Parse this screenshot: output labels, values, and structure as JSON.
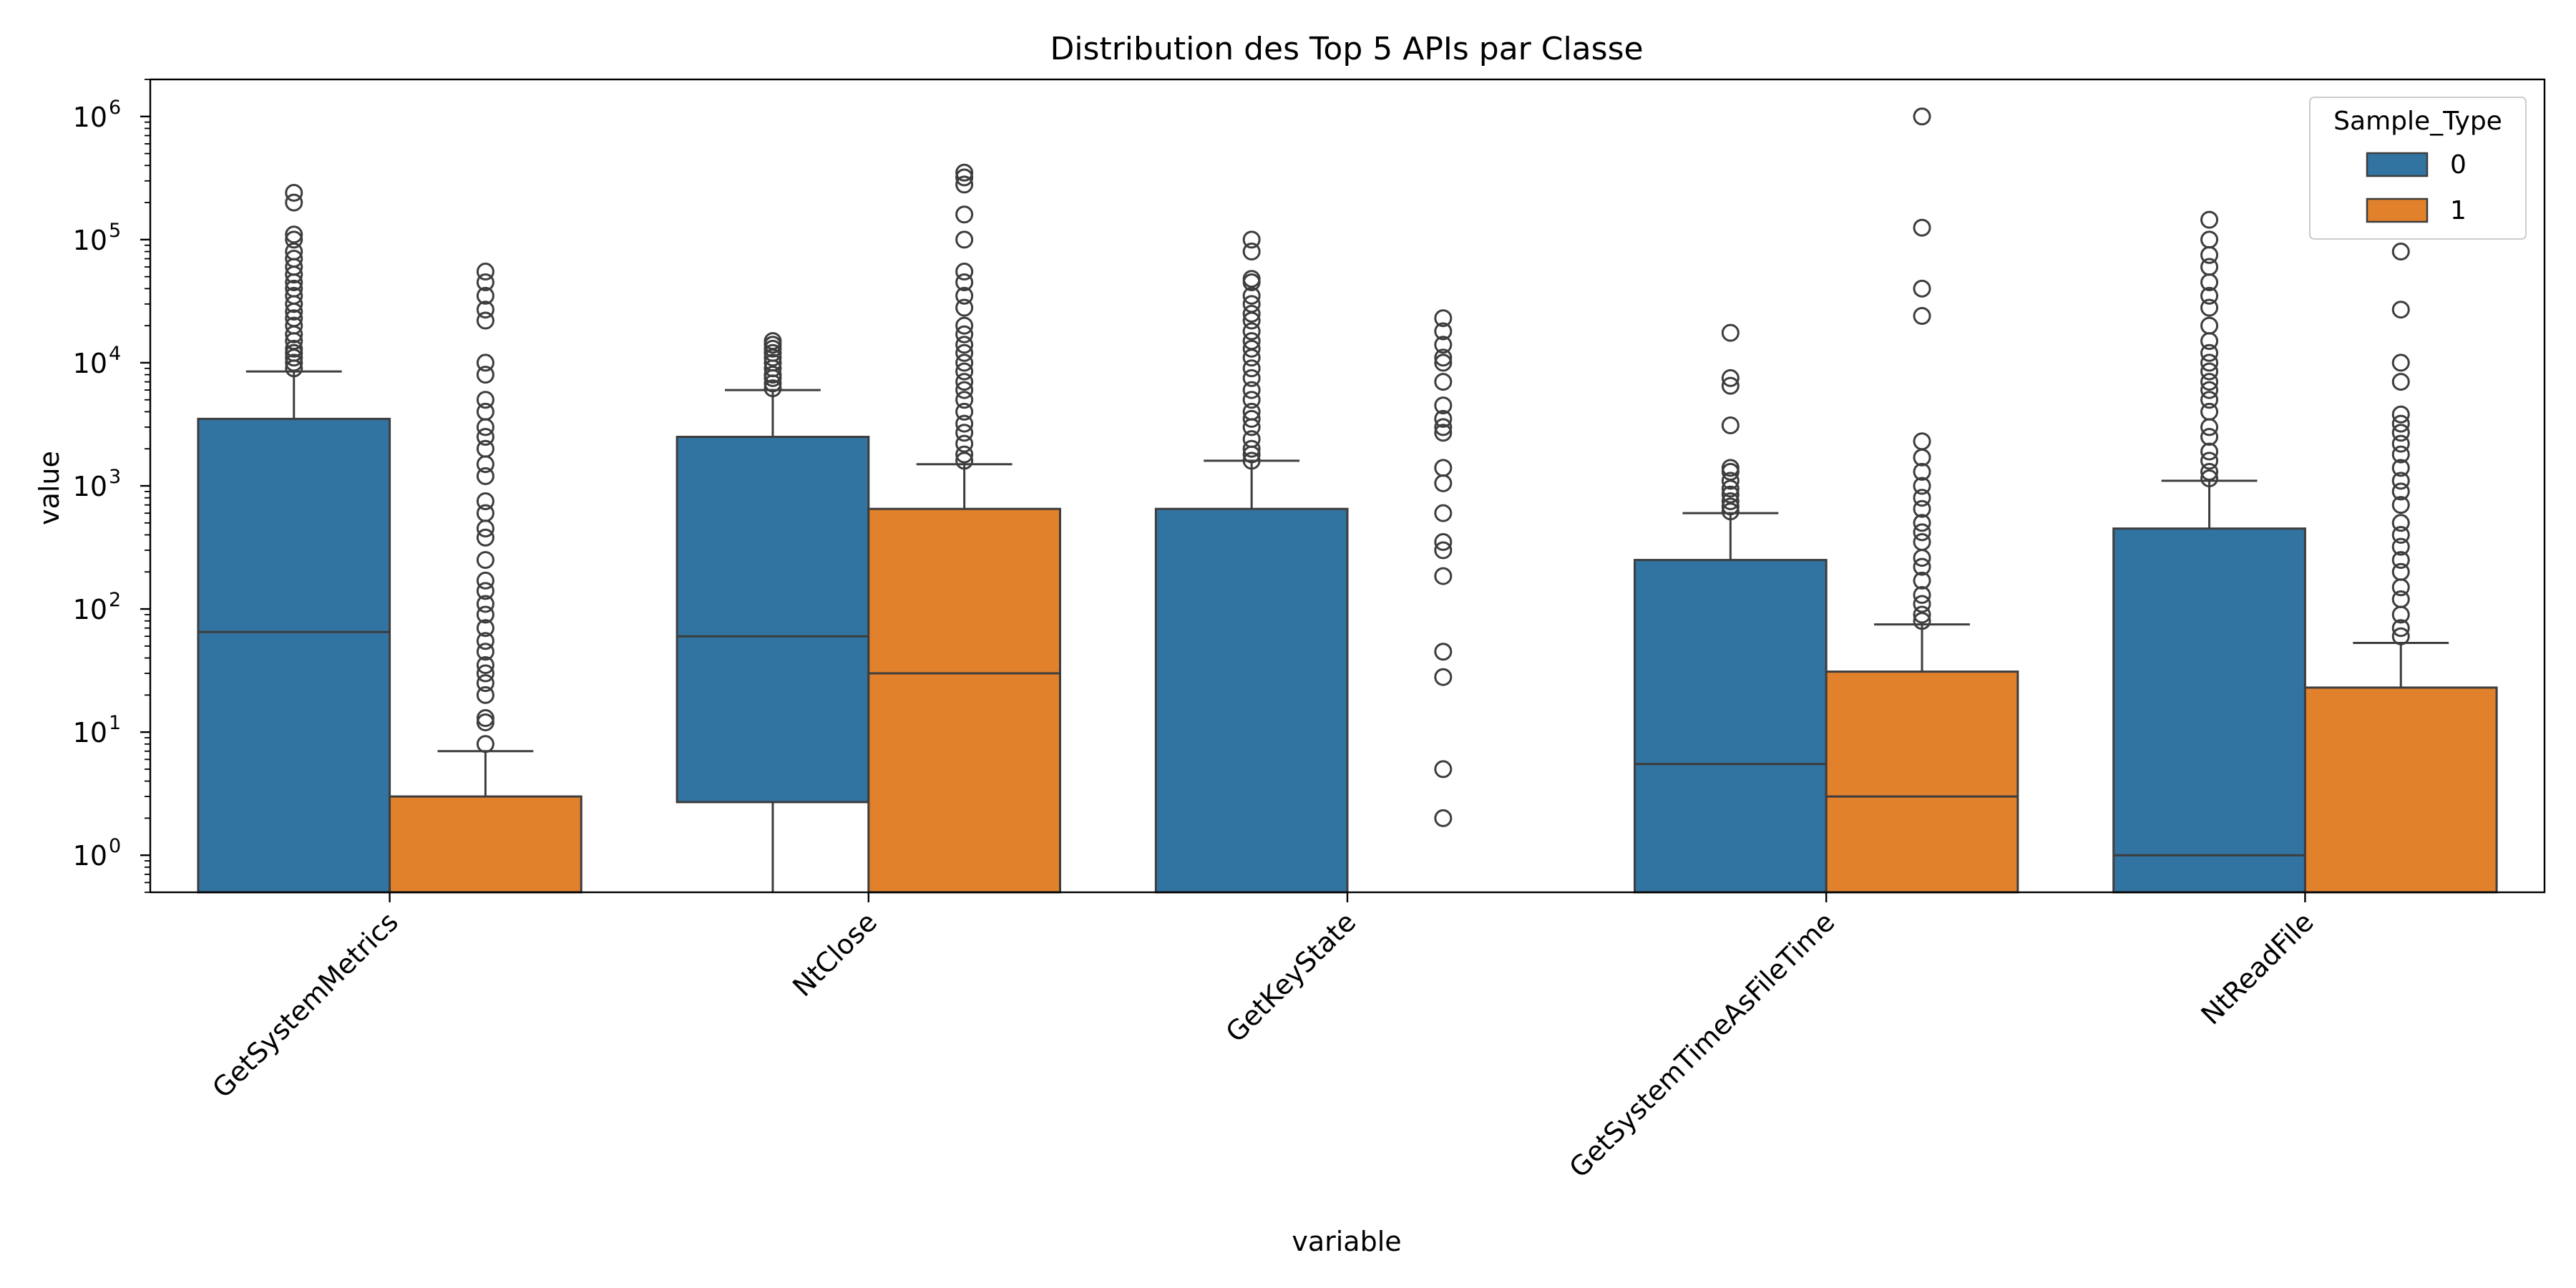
{
  "chart_data": {
    "type": "boxplot",
    "title": "Distribution des Top 5 APIs par Classe",
    "xlabel": "variable",
    "ylabel": "value",
    "yscale": "log",
    "ylim": [
      0.5,
      2000000
    ],
    "y_ticks": [
      {
        "value": 1,
        "base": "10",
        "exp": "0"
      },
      {
        "value": 10,
        "base": "10",
        "exp": "1"
      },
      {
        "value": 100,
        "base": "10",
        "exp": "2"
      },
      {
        "value": 1000,
        "base": "10",
        "exp": "3"
      },
      {
        "value": 10000,
        "base": "10",
        "exp": "4"
      },
      {
        "value": 100000,
        "base": "10",
        "exp": "5"
      },
      {
        "value": 1000000,
        "base": "10",
        "exp": "6"
      }
    ],
    "categories": [
      "GetSystemMetrics",
      "NtClose",
      "GetKeyState",
      "GetSystemTimeAsFileTime",
      "NtReadFile"
    ],
    "legend": {
      "title": "Sample_Type",
      "position": "top-right"
    },
    "series": [
      {
        "name": "0",
        "color": "#3274a1",
        "boxes": [
          {
            "q1": 0.5,
            "median": 65,
            "q3": 3500,
            "whisker_low": null,
            "whisker_high": 8500,
            "outliers": [
              9000,
              10000,
              11000,
              12000,
              13000,
              15000,
              17000,
              20000,
              23000,
              26000,
              30000,
              35000,
              40000,
              45000,
              52000,
              60000,
              70000,
              80000,
              100000,
              110000,
              200000,
              240000
            ]
          },
          {
            "q1": 2.7,
            "median": 60,
            "q3": 2500,
            "whisker_low": 0.5,
            "whisker_high": 6000,
            "outliers": [
              6200,
              6800,
              7500,
              8000,
              9000,
              10000,
              11000,
              12000,
              13000,
              14000,
              15000
            ]
          },
          {
            "q1": 0.5,
            "median": 0.5,
            "q3": 650,
            "whisker_low": null,
            "whisker_high": 1600,
            "outliers": [
              1600,
              1800,
              2000,
              2400,
              3000,
              3500,
              4000,
              5000,
              6000,
              7500,
              9000,
              11000,
              13000,
              15000,
              18000,
              22000,
              25000,
              30000,
              35000,
              45000,
              48000,
              80000,
              100000
            ]
          },
          {
            "q1": 0.5,
            "median": 5.5,
            "q3": 250,
            "whisker_low": null,
            "whisker_high": 600,
            "outliers": [
              620,
              680,
              750,
              850,
              950,
              1100,
              1300,
              1400,
              3100,
              6500,
              7500,
              17500
            ]
          },
          {
            "q1": 0.5,
            "median": 1,
            "q3": 450,
            "whisker_low": null,
            "whisker_high": 1100,
            "outliers": [
              1150,
              1300,
              1600,
              1900,
              2500,
              3000,
              4000,
              5000,
              6000,
              7000,
              8500,
              10000,
              12000,
              15000,
              20000,
              28000,
              35000,
              45000,
              60000,
              75000,
              100000,
              145000
            ]
          }
        ]
      },
      {
        "name": "1",
        "color": "#e1812c",
        "boxes": [
          {
            "q1": 0.5,
            "median": 0.5,
            "q3": 3,
            "whisker_low": null,
            "whisker_high": 7,
            "outliers": [
              8,
              12,
              13,
              20,
              25,
              30,
              35,
              45,
              55,
              70,
              90,
              110,
              140,
              170,
              250,
              380,
              450,
              600,
              750,
              1200,
              1500,
              2000,
              2500,
              3000,
              4000,
              5000,
              8000,
              10000,
              22000,
              27000,
              35000,
              45000,
              55000
            ]
          },
          {
            "q1": 0.5,
            "median": 30,
            "q3": 650,
            "whisker_low": null,
            "whisker_high": 1500,
            "outliers": [
              1600,
              1800,
              2200,
              2700,
              3200,
              4000,
              5000,
              6000,
              7000,
              8500,
              10000,
              12000,
              14000,
              17000,
              20000,
              28000,
              35000,
              45000,
              55000,
              100000,
              160000,
              280000,
              320000,
              350000
            ]
          },
          {
            "q1": null,
            "median": null,
            "q3": null,
            "whisker_low": null,
            "whisker_high": null,
            "outliers": [
              2,
              5,
              28,
              45,
              185,
              300,
              350,
              600,
              1050,
              1400,
              2700,
              3000,
              3500,
              4500,
              7000,
              10000,
              11000,
              14000,
              18000,
              23000
            ]
          },
          {
            "q1": 0.5,
            "median": 3,
            "q3": 31,
            "whisker_low": null,
            "whisker_high": 75,
            "outliers": [
              80,
              90,
              110,
              130,
              170,
              220,
              260,
              350,
              420,
              500,
              650,
              800,
              1000,
              1300,
              1700,
              2300,
              24000,
              40000,
              125000,
              1000000
            ]
          },
          {
            "q1": 0.5,
            "median": 0.5,
            "q3": 23,
            "whisker_low": null,
            "whisker_high": 53,
            "outliers": [
              60,
              70,
              90,
              120,
              150,
              200,
              250,
              320,
              400,
              500,
              700,
              900,
              1100,
              1400,
              1800,
              2200,
              2700,
              3200,
              3800,
              7000,
              10000,
              27000,
              80000
            ]
          }
        ]
      }
    ]
  }
}
